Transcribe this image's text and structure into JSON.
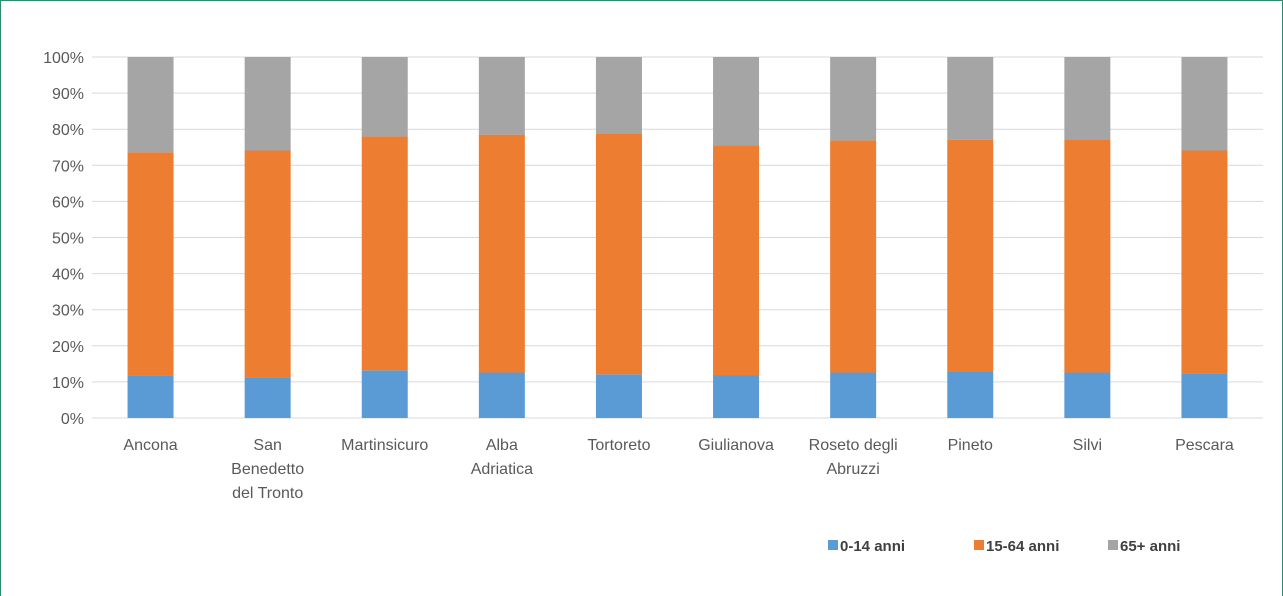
{
  "chart_data": {
    "type": "bar",
    "stacked": true,
    "percent": true,
    "title": "",
    "xlabel": "",
    "ylabel": "",
    "ylim": [
      0,
      100
    ],
    "yticks": [
      "0%",
      "10%",
      "20%",
      "30%",
      "40%",
      "50%",
      "60%",
      "70%",
      "80%",
      "90%",
      "100%"
    ],
    "grid": "horizontal",
    "legend_position": "bottom-right",
    "categories": [
      [
        "Ancona"
      ],
      [
        "San",
        "Benedetto",
        "del Tronto"
      ],
      [
        "Martinsicuro"
      ],
      [
        "Alba",
        "Adriatica"
      ],
      [
        "Tortoreto"
      ],
      [
        "Giulianova"
      ],
      [
        "Roseto degli",
        "Abruzzi"
      ],
      [
        "Pineto"
      ],
      [
        "Silvi"
      ],
      [
        "Pescara"
      ]
    ],
    "series": [
      {
        "name": "0-14 anni",
        "color": "#5b9bd5",
        "values": [
          11.8,
          11.2,
          13.2,
          12.6,
          12.1,
          11.9,
          12.6,
          12.9,
          12.6,
          12.2
        ]
      },
      {
        "name": "15-64 anni",
        "color": "#ed7d31",
        "values": [
          61.8,
          62.9,
          64.8,
          65.9,
          66.8,
          63.6,
          64.3,
          64.2,
          64.6,
          61.9
        ]
      },
      {
        "name": "65+ anni",
        "color": "#a5a5a5",
        "values": [
          26.4,
          25.9,
          22.0,
          21.5,
          21.1,
          24.5,
          23.1,
          22.9,
          22.8,
          25.9
        ]
      }
    ]
  }
}
